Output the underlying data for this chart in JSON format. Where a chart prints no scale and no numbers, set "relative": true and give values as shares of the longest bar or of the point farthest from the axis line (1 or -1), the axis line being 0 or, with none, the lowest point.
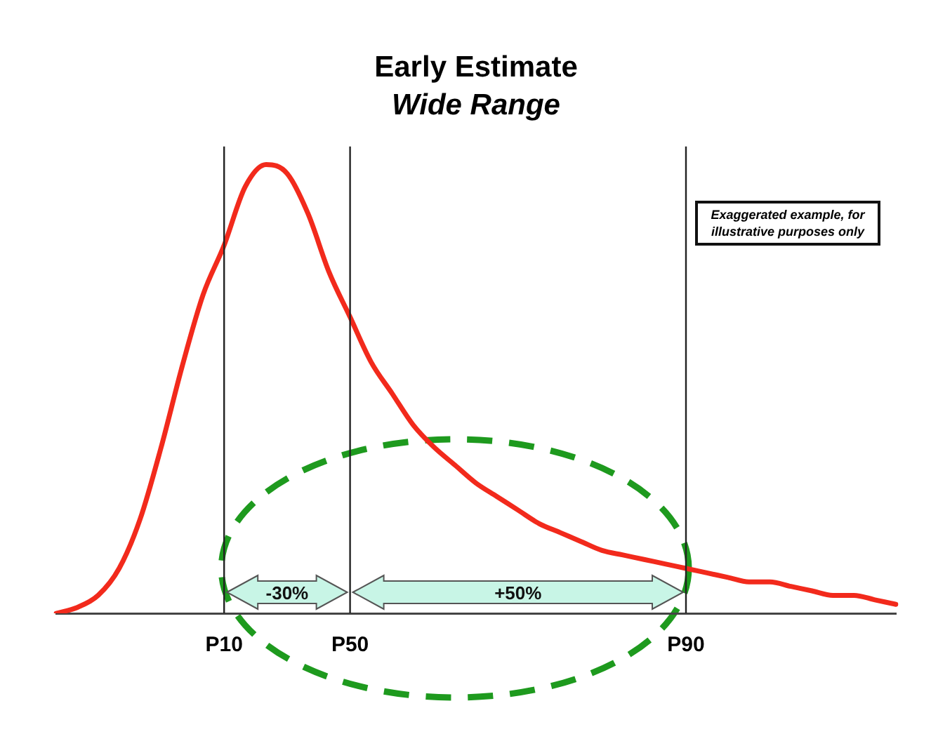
{
  "chart_data": {
    "type": "line",
    "title": "Early Estimate",
    "subtitle": "Wide Range",
    "relative": true,
    "grid": false,
    "legend": false,
    "marker": "none",
    "line_style": "solid",
    "categories": [
      null,
      null,
      null,
      null,
      null,
      null,
      null,
      null,
      "P10",
      null,
      null,
      null,
      null,
      null,
      "P50",
      null,
      null,
      null,
      null,
      null,
      null,
      null,
      null,
      null,
      null,
      null,
      null,
      null,
      null,
      null,
      "P90",
      null,
      null,
      null,
      null,
      null,
      null,
      null,
      null,
      null,
      null
    ],
    "series": [
      {
        "color": "#f22a1c",
        "values": [
          0,
          0.013,
          0.04,
          0.1,
          0.21,
          0.37,
          0.55,
          0.71,
          0.82,
          0.95,
          1,
          0.98,
          0.89,
          0.76,
          0.66,
          0.56,
          0.49,
          0.42,
          0.37,
          0.33,
          0.29,
          0.26,
          0.23,
          0.2,
          0.18,
          0.16,
          0.14,
          0.13,
          0.12,
          0.11,
          0.1,
          0.09,
          0.08,
          0.07,
          0.07,
          0.06,
          0.05,
          0.04,
          0.04,
          0.03,
          0.02
        ]
      }
    ],
    "ref_lines": [
      {
        "axis": "x",
        "value": "P10",
        "color": "#222222"
      },
      {
        "axis": "x",
        "value": "P50",
        "color": "#222222"
      },
      {
        "axis": "x",
        "value": "P90",
        "color": "#222222"
      }
    ],
    "annotations": [
      "Exaggerated example, for illustrative purposes only",
      "-30%",
      "+50%"
    ]
  }
}
